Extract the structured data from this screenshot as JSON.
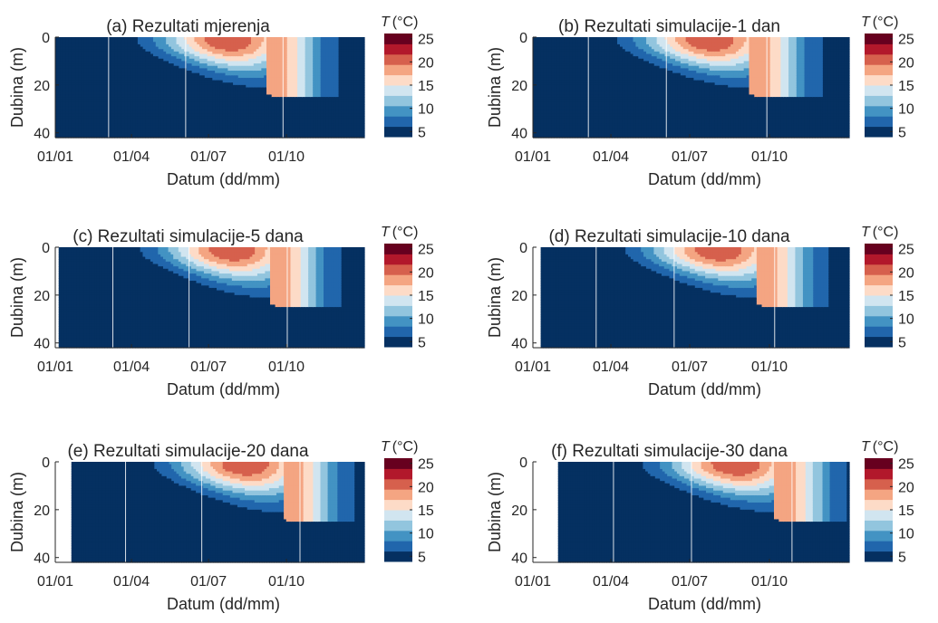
{
  "figure": {
    "xlabel": "Datum (dd/mm)",
    "ylabel": "Dubina (m)",
    "colorbar": {
      "title_var": "T",
      "title_unit": "(°C)",
      "ticks": [
        5,
        10,
        15,
        20,
        25
      ],
      "range": [
        5,
        25
      ],
      "levels": [
        5,
        7.5,
        10,
        12.5,
        15,
        17.5,
        20,
        22.5,
        25
      ],
      "colors": [
        "#053061",
        "#2166ac",
        "#4393c3",
        "#92c5de",
        "#d1e5f0",
        "#fddbc7",
        "#f4a582",
        "#d6604d",
        "#b2182b",
        "#67001f"
      ]
    },
    "xticks": [
      "01/01",
      "01/04",
      "01/07",
      "01/10"
    ],
    "yticks": [
      0,
      20,
      40
    ]
  },
  "chart_data": [
    {
      "type": "heatmap",
      "title": "(a) Rezultati mjerenja",
      "xlabel": "Datum (dd/mm)",
      "ylabel": "Dubina (m)",
      "x_start_day": 0,
      "x_end_day": 365,
      "ylim": [
        0,
        42
      ],
      "y_reversed": true,
      "series_depth": 42,
      "vlines_day": [
        63,
        154,
        269
      ],
      "bands": [
        {
          "lo": 5,
          "hi": 7.5,
          "x": [
            60,
            80,
            110,
            150,
            200,
            250,
            290,
            320
          ],
          "y": [
            42,
            42,
            36,
            30,
            24,
            20,
            12,
            0
          ]
        },
        {
          "lo": 7.5,
          "hi": 10,
          "x": [
            75,
            90,
            120,
            160,
            210,
            255,
            295,
            330
          ],
          "y": [
            24,
            22,
            20,
            18,
            16,
            14,
            10,
            0
          ]
        }
      ]
    },
    {
      "type": "heatmap",
      "title": "(b) Rezultati simulacije-1 dan",
      "xlabel": "Datum (dd/mm)",
      "ylabel": "Dubina (m)",
      "x_start_day": 0,
      "x_end_day": 365,
      "ylim": [
        0,
        42
      ],
      "y_reversed": true,
      "vlines_day": [
        64,
        154,
        270
      ]
    },
    {
      "type": "heatmap",
      "title": "(c) Rezultati simulacije-5 dana",
      "xlabel": "Datum (dd/mm)",
      "ylabel": "Dubina (m)",
      "x_start_day": 4,
      "x_end_day": 365,
      "ylim": [
        0,
        42
      ],
      "y_reversed": true,
      "vlines_day": [
        68,
        158,
        274
      ]
    },
    {
      "type": "heatmap",
      "title": "(d) Rezultati simulacije-10 dana",
      "xlabel": "Datum (dd/mm)",
      "ylabel": "Dubina (m)",
      "x_start_day": 9,
      "x_end_day": 365,
      "ylim": [
        0,
        42
      ],
      "y_reversed": true,
      "vlines_day": [
        73,
        163,
        279
      ]
    },
    {
      "type": "heatmap",
      "title": "(e) Rezultati simulacije-20 dana",
      "xlabel": "Datum (dd/mm)",
      "ylabel": "Dubina (m)",
      "x_start_day": 19,
      "x_end_day": 365,
      "ylim": [
        0,
        42
      ],
      "y_reversed": true,
      "vlines_day": [
        83,
        173,
        289
      ]
    },
    {
      "type": "heatmap",
      "title": "(f) Rezultati simulacije-30 dana",
      "xlabel": "Datum (dd/mm)",
      "ylabel": "Dubina (m)",
      "x_start_day": 29,
      "x_end_day": 365,
      "ylim": [
        0,
        42
      ],
      "y_reversed": true,
      "vlines_day": [
        93,
        183,
        299
      ]
    }
  ]
}
